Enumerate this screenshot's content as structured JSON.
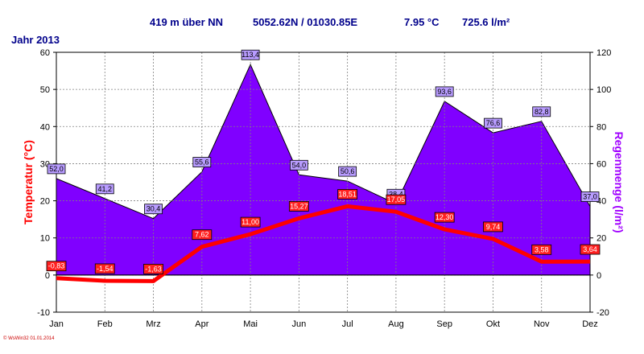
{
  "header": {
    "altitude": "419 m über NN",
    "coords": "5052.62N / 01030.85E",
    "avg_temp": "7.95 °C",
    "total_rain": "725.6 l/m²",
    "year": "Jahr  2013"
  },
  "footer": {
    "credit": "© WsWin32  01.01.2014"
  },
  "colors": {
    "temp": "#FF0000",
    "rain_fill": "#8000FF",
    "rain_label": "#B89CFF",
    "temp_label": "#FF2020",
    "rain_axis": "#A000FF",
    "header": "#00008B",
    "grid": "#808080"
  },
  "chart_data": {
    "type": "line+area",
    "categories": [
      "Jan",
      "Feb",
      "Mrz",
      "Apr",
      "Mai",
      "Jun",
      "Jul",
      "Aug",
      "Sep",
      "Okt",
      "Nov",
      "Dez"
    ],
    "series": [
      {
        "name": "Temperatur (°C)",
        "axis": "left",
        "type": "line",
        "values": [
          -0.83,
          -1.54,
          -1.63,
          7.62,
          11.0,
          15.27,
          18.51,
          17.05,
          12.3,
          9.74,
          3.58,
          3.64
        ],
        "labels": [
          "-0,83",
          "-1,54",
          "-1,63",
          "7,62",
          "11,00",
          "15,27",
          "18,51",
          "17,05",
          "12,30",
          "9,74",
          "3,58",
          "3,64"
        ]
      },
      {
        "name": "Regenmenge (l/m²)",
        "axis": "right",
        "type": "area",
        "values": [
          52.0,
          41.2,
          30.4,
          55.6,
          113.4,
          54.0,
          50.6,
          38.4,
          93.6,
          76.6,
          82.8,
          37.0
        ],
        "labels": [
          "52,0",
          "41,2",
          "30,4",
          "55,6",
          "113,4",
          "54,0",
          "50,6",
          "38,4",
          "93,6",
          "76,6",
          "82,8",
          "37,0"
        ]
      }
    ],
    "ylabel_left": "Temperatur  (°C)",
    "ylabel_right": "Regenmenge  (l/m²)",
    "ylim_left": [
      -10,
      60
    ],
    "ylim_right": [
      -20,
      120
    ],
    "yticks_left": [
      -10,
      0,
      10,
      20,
      30,
      40,
      50,
      60
    ],
    "yticks_right": [
      -20,
      0,
      20,
      40,
      60,
      80,
      100,
      120
    ],
    "grid": true
  }
}
